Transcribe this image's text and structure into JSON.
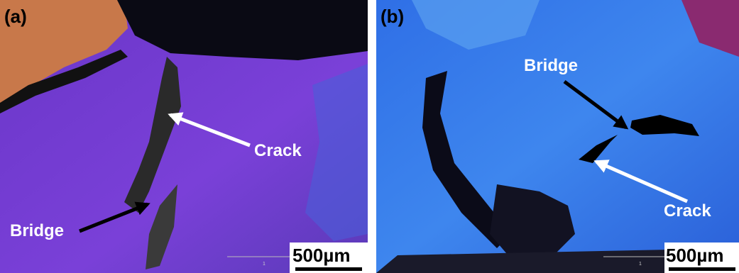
{
  "panels": [
    {
      "label": "(a)",
      "annotations": [
        {
          "text": "Crack"
        },
        {
          "text": "Bridge"
        }
      ],
      "scale_bar": {
        "text": "500µm",
        "marker": "1"
      }
    },
    {
      "label": "(b)",
      "annotations": [
        {
          "text": "Bridge"
        },
        {
          "text": "Crack"
        }
      ],
      "scale_bar": {
        "text": "500µm",
        "marker": "1"
      }
    }
  ]
}
